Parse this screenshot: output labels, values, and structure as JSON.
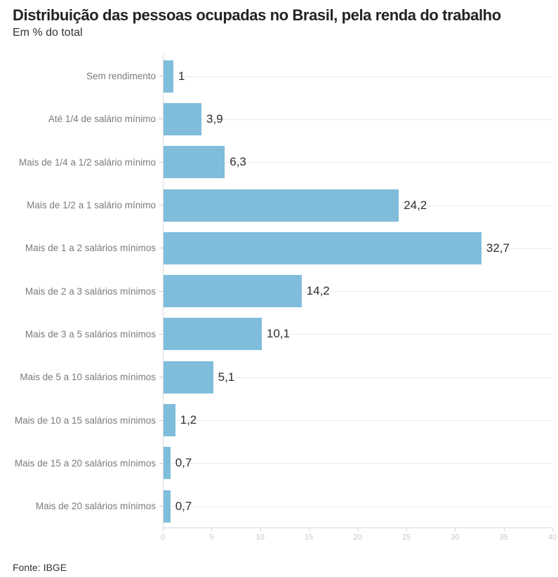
{
  "chart_data": {
    "type": "bar",
    "orientation": "horizontal",
    "title": "Distribuição das pessoas ocupadas no Brasil, pela renda do trabalho",
    "subtitle": "Em % do total",
    "categories": [
      "Sem rendimento",
      "Até 1/4 de salário mínimo",
      "Mais de 1/4 a 1/2 salário mínimo",
      "Mais de 1/2 a 1 salário mínimo",
      "Mais de 1 a 2 salários mínimos",
      "Mais de 2 a 3 salários mínimos",
      "Mais de 3 a 5 salários mínimos",
      "Mais de 5 a 10 salários mínimos",
      "Mais de 10 a 15 salários mínimos",
      "Mais de 15 a 20 salários mínimos",
      "Mais de 20 salários mínimos"
    ],
    "values": [
      1,
      3.9,
      6.3,
      24.2,
      32.7,
      14.2,
      10.1,
      5.1,
      1.2,
      0.7,
      0.7
    ],
    "value_labels": [
      "1",
      "3,9",
      "6,3",
      "24,2",
      "32,7",
      "14,2",
      "10,1",
      "5,1",
      "1,2",
      "0,7",
      "0,7"
    ],
    "xlim": [
      0,
      40
    ],
    "x_ticks": [
      0,
      5,
      10,
      15,
      20,
      25,
      30,
      35,
      40
    ],
    "grid": "one light horizontal gridline per category, behind bars",
    "legend_position": "none",
    "source": "Fonte: IBGE"
  },
  "colors": {
    "bar": "#7fbddb",
    "grid": "#ebebeb",
    "axis": "#d9d9d9",
    "category_label": "#7b7b7b",
    "value_label": "#2e2e2e",
    "tick_label": "#c8c8c8",
    "title": "#232323"
  }
}
